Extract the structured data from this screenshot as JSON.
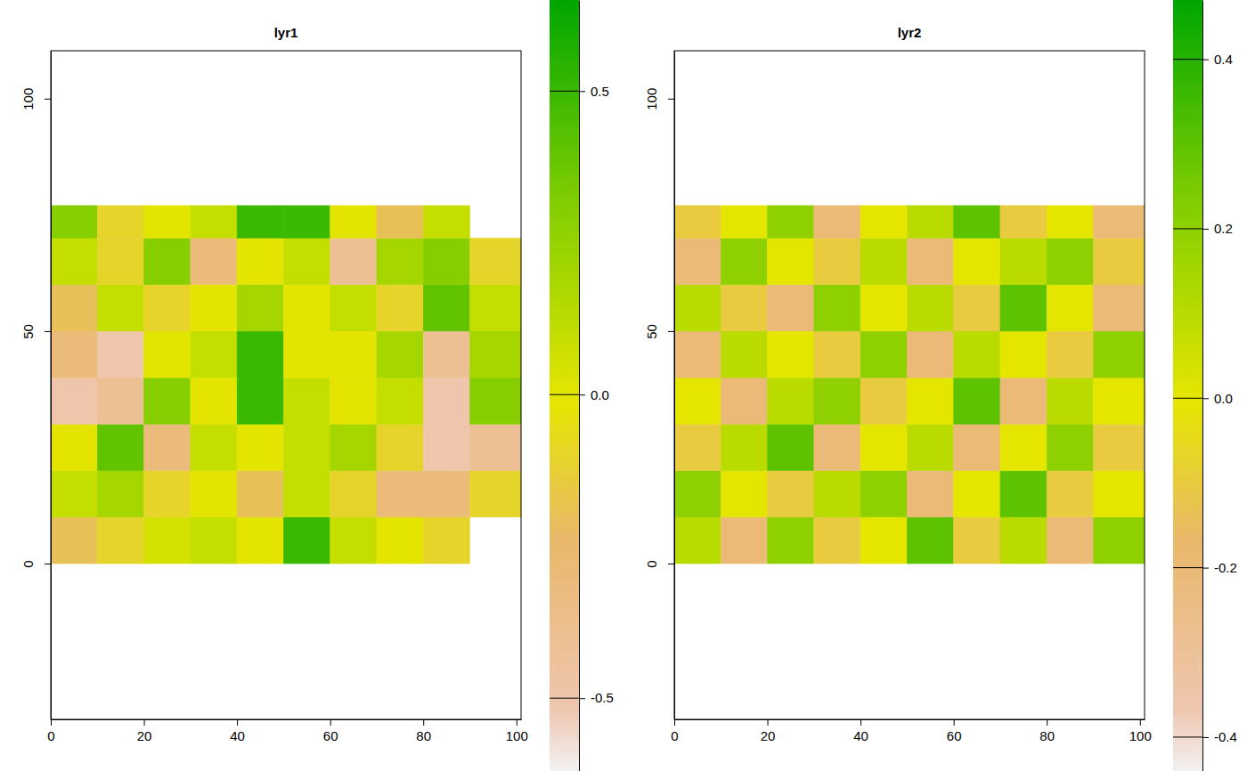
{
  "chart_data": [
    {
      "type": "heatmap",
      "title": "lyr1",
      "xlim": [
        0,
        101
      ],
      "ylim": [
        -33.5,
        110.3
      ],
      "xticks": [
        0,
        20,
        40,
        60,
        80,
        100
      ],
      "yticks": [
        0,
        50,
        100
      ],
      "x_edges": [
        0,
        10,
        20,
        30,
        40,
        50,
        60,
        70,
        80,
        90,
        101
      ],
      "y_edges": [
        0,
        10,
        20,
        30,
        40,
        50,
        60,
        70,
        77
      ],
      "values": [
        [
          -0.2,
          -0.1,
          0.05,
          0.1,
          0.0,
          0.5,
          0.1,
          0.0,
          -0.1,
          null
        ],
        [
          0.1,
          0.2,
          -0.1,
          0.0,
          -0.2,
          0.1,
          -0.1,
          -0.3,
          -0.3,
          -0.1
        ],
        [
          0.0,
          0.4,
          -0.3,
          0.1,
          0.0,
          0.1,
          0.2,
          -0.1,
          -0.5,
          -0.4
        ],
        [
          -0.5,
          -0.4,
          0.3,
          0.0,
          0.5,
          0.1,
          0.0,
          0.1,
          -0.5,
          0.3
        ],
        [
          -0.3,
          -0.5,
          0.0,
          0.1,
          0.5,
          0.0,
          0.0,
          0.2,
          -0.4,
          0.2
        ],
        [
          -0.2,
          0.1,
          -0.1,
          0.0,
          0.2,
          0.0,
          0.1,
          -0.1,
          0.4,
          0.1
        ],
        [
          0.1,
          -0.1,
          0.3,
          -0.3,
          0.0,
          0.1,
          -0.4,
          0.2,
          0.3,
          -0.1
        ],
        [
          0.3,
          -0.1,
          0.0,
          0.1,
          0.5,
          0.5,
          0.0,
          -0.2,
          0.1,
          null
        ]
      ],
      "colorbar_lim": [
        -0.62,
        0.65
      ],
      "colorbar_ticks": [
        -0.5,
        {
          "value": 0,
          "label": "0.0"
        },
        0.5
      ]
    },
    {
      "type": "heatmap",
      "title": "lyr2",
      "xlim": [
        0,
        101
      ],
      "ylim": [
        -33.5,
        110.3
      ],
      "xticks": [
        0,
        20,
        40,
        60,
        80,
        100
      ],
      "yticks": [
        0,
        50,
        100
      ],
      "x_edges": [
        0,
        10,
        20,
        30,
        40,
        50,
        60,
        70,
        80,
        90,
        101
      ],
      "y_edges": [
        0,
        10,
        20,
        30,
        40,
        50,
        60,
        70,
        77
      ],
      "values": [
        [
          0.1,
          -0.2,
          0.2,
          -0.1,
          0.0,
          0.3,
          -0.1,
          0.1,
          -0.2,
          0.2
        ],
        [
          0.2,
          0.0,
          -0.1,
          0.1,
          0.2,
          -0.2,
          0.0,
          0.3,
          -0.1,
          0.0
        ],
        [
          -0.1,
          0.1,
          0.3,
          -0.2,
          0.0,
          0.1,
          -0.2,
          0.0,
          0.2,
          -0.1
        ],
        [
          0.0,
          -0.2,
          0.1,
          0.2,
          -0.1,
          0.0,
          0.3,
          -0.2,
          0.1,
          0.0
        ],
        [
          -0.2,
          0.1,
          0.0,
          -0.1,
          0.2,
          -0.2,
          0.1,
          0.0,
          -0.1,
          0.2
        ],
        [
          0.1,
          -0.1,
          -0.2,
          0.2,
          0.0,
          0.1,
          -0.1,
          0.3,
          0.0,
          -0.2
        ],
        [
          -0.2,
          0.2,
          0.0,
          -0.1,
          0.1,
          -0.2,
          0.0,
          0.1,
          0.2,
          -0.1
        ],
        [
          -0.1,
          0.0,
          0.2,
          -0.2,
          0.0,
          0.1,
          0.3,
          -0.1,
          0.0,
          -0.2
        ]
      ],
      "colorbar_lim": [
        -0.44,
        0.47
      ],
      "colorbar_ticks": [
        -0.4,
        -0.2,
        {
          "value": 0,
          "label": "0.0"
        },
        0.2,
        0.4
      ]
    }
  ]
}
